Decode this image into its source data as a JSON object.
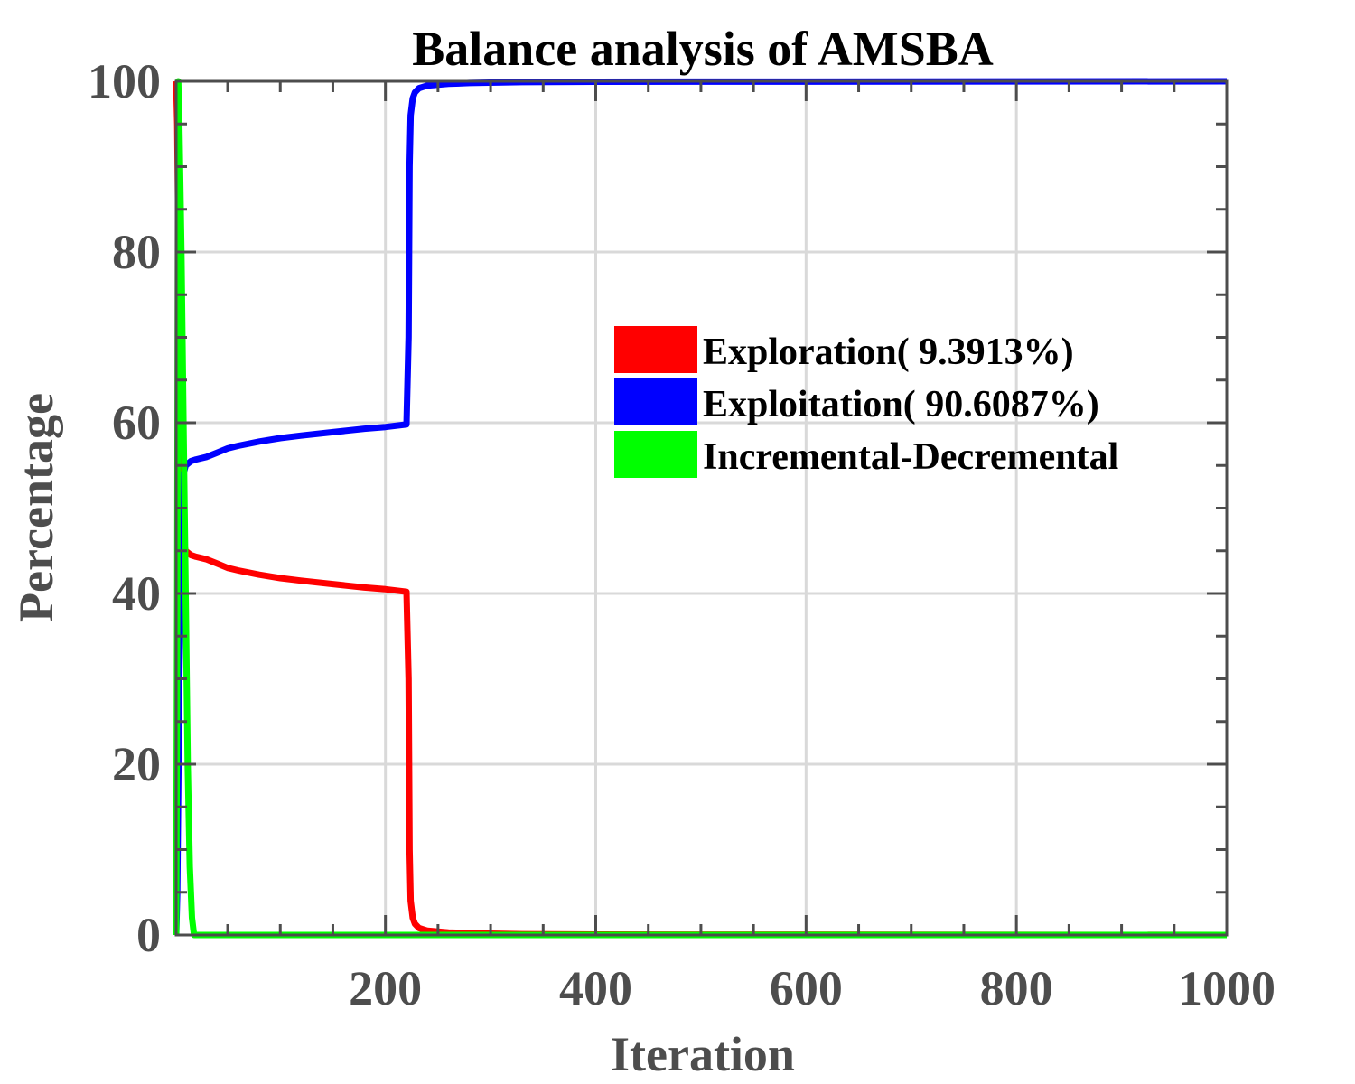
{
  "chart_data": {
    "type": "line",
    "title": "Balance analysis of AMSBA",
    "xlabel": "Iteration",
    "ylabel": "Percentage",
    "xlim": [
      1,
      1000
    ],
    "ylim": [
      0,
      100
    ],
    "xticks": [
      200,
      400,
      600,
      800,
      1000
    ],
    "yticks": [
      0,
      20,
      40,
      60,
      80,
      100
    ],
    "grid": true,
    "legend_position": "right",
    "series": [
      {
        "name": "Exploration( 9.3913%)",
        "color": "#ff0000",
        "points": [
          [
            1,
            100
          ],
          [
            2,
            95
          ],
          [
            4,
            70
          ],
          [
            6,
            50
          ],
          [
            8,
            46
          ],
          [
            10,
            45
          ],
          [
            15,
            44.5
          ],
          [
            20,
            44.3
          ],
          [
            30,
            44.0
          ],
          [
            40,
            43.5
          ],
          [
            50,
            43.0
          ],
          [
            60,
            42.7
          ],
          [
            80,
            42.2
          ],
          [
            100,
            41.8
          ],
          [
            120,
            41.5
          ],
          [
            150,
            41.1
          ],
          [
            180,
            40.7
          ],
          [
            200,
            40.5
          ],
          [
            220,
            40.2
          ],
          [
            222,
            30
          ],
          [
            223,
            10
          ],
          [
            224,
            4
          ],
          [
            226,
            2
          ],
          [
            228,
            1.3
          ],
          [
            232,
            0.8
          ],
          [
            240,
            0.5
          ],
          [
            260,
            0.3
          ],
          [
            280,
            0.2
          ],
          [
            330,
            0.1
          ],
          [
            400,
            0.05
          ],
          [
            1000,
            0
          ]
        ]
      },
      {
        "name": "Exploitation( 90.6087%)",
        "color": "#0000ff",
        "points": [
          [
            1,
            0
          ],
          [
            2,
            5
          ],
          [
            4,
            30
          ],
          [
            6,
            50
          ],
          [
            8,
            54
          ],
          [
            10,
            55
          ],
          [
            15,
            55.5
          ],
          [
            20,
            55.7
          ],
          [
            30,
            56.0
          ],
          [
            40,
            56.5
          ],
          [
            50,
            57.0
          ],
          [
            60,
            57.3
          ],
          [
            80,
            57.8
          ],
          [
            100,
            58.2
          ],
          [
            120,
            58.5
          ],
          [
            150,
            58.9
          ],
          [
            180,
            59.3
          ],
          [
            200,
            59.5
          ],
          [
            220,
            59.8
          ],
          [
            222,
            70
          ],
          [
            223,
            90
          ],
          [
            224,
            96
          ],
          [
            226,
            98
          ],
          [
            228,
            98.7
          ],
          [
            232,
            99.2
          ],
          [
            240,
            99.5
          ],
          [
            260,
            99.7
          ],
          [
            280,
            99.8
          ],
          [
            330,
            99.9
          ],
          [
            400,
            99.95
          ],
          [
            1000,
            100
          ]
        ]
      },
      {
        "name": "Incremental-Decremental",
        "color": "#00ff00",
        "points": [
          [
            1,
            0
          ],
          [
            2,
            40
          ],
          [
            3,
            100
          ],
          [
            4,
            95
          ],
          [
            6,
            80
          ],
          [
            8,
            60
          ],
          [
            10,
            40
          ],
          [
            12,
            20
          ],
          [
            14,
            8
          ],
          [
            16,
            2
          ],
          [
            18,
            0
          ],
          [
            1000,
            0
          ]
        ]
      }
    ]
  }
}
